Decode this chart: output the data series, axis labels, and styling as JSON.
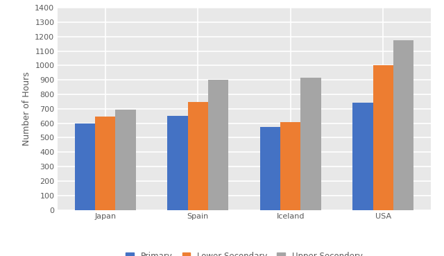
{
  "countries": [
    "Japan",
    "Spain",
    "Iceland",
    "USA"
  ],
  "series": {
    "Primary": [
      600,
      650,
      575,
      740
    ],
    "Lower Secondary": [
      645,
      745,
      610,
      1000
    ],
    "Upper Secondery": [
      695,
      900,
      915,
      1175
    ]
  },
  "colors": {
    "Primary": "#4472C4",
    "Lower Secondary": "#ED7D31",
    "Upper Secondery": "#A5A5A5"
  },
  "ylabel": "Number of Hours",
  "ylim": [
    0,
    1400
  ],
  "yticks": [
    0,
    100,
    200,
    300,
    400,
    500,
    600,
    700,
    800,
    900,
    1000,
    1100,
    1200,
    1300,
    1400
  ],
  "legend_labels": [
    "Primary",
    "Lower Secondary",
    "Upper Secondery"
  ],
  "figure_bg": "#ffffff",
  "plot_bg": "#e8e8e8",
  "bar_width": 0.22,
  "grid_color": "#ffffff",
  "ylabel_fontsize": 9,
  "tick_fontsize": 8,
  "legend_fontsize": 8.5,
  "xlabel_fontsize": 9
}
